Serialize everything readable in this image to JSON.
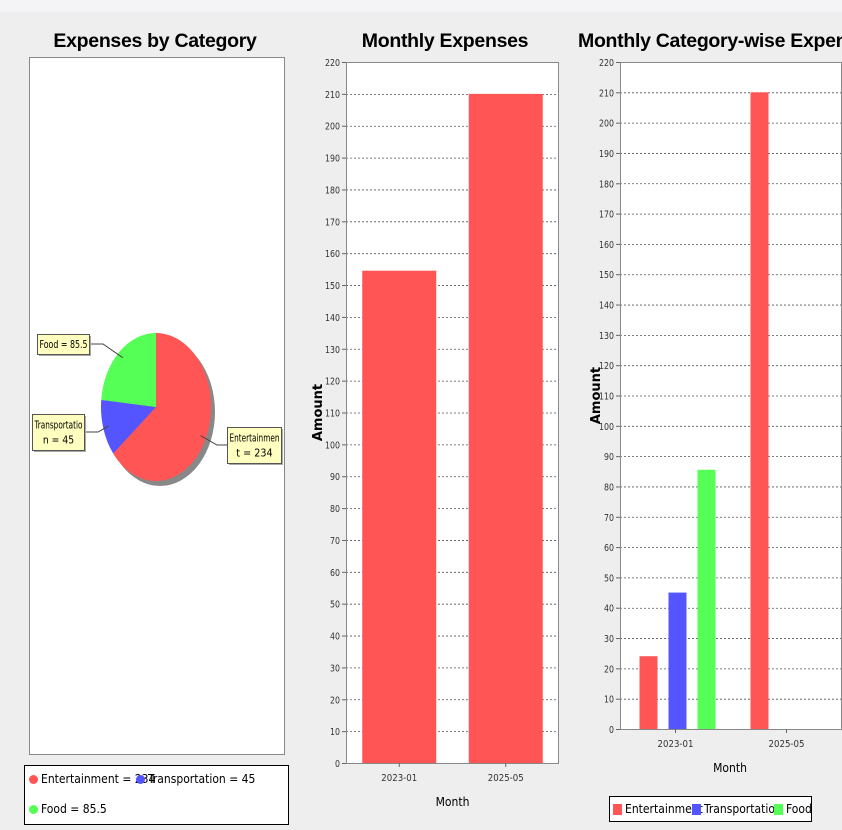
{
  "chart_data": [
    {
      "type": "pie",
      "title": "Expenses by Category",
      "slices": [
        {
          "label": "Entertainment",
          "value": 234,
          "color": "#ff5555",
          "callout": [
            "Entertainmen",
            "t = 234"
          ]
        },
        {
          "label": "Transportation",
          "value": 45,
          "color": "#5555ff",
          "callout": [
            "Transportatio",
            "n = 45"
          ]
        },
        {
          "label": "Food",
          "value": 85.5,
          "color": "#55ff55",
          "callout": [
            "Food = 85.5"
          ]
        }
      ],
      "legend": [
        "Entertainment = 234",
        "Transportation = 45",
        "Food = 85.5"
      ],
      "legend_position": "bottom"
    },
    {
      "type": "bar",
      "title": "Monthly Expenses",
      "categories": [
        "2023-01",
        "2025-05"
      ],
      "values": [
        154.5,
        210
      ],
      "color": "#ff5555",
      "xlabel": "Month",
      "ylabel": "Amount",
      "ylim": [
        0,
        220
      ],
      "ytick_step": 10,
      "grid": true
    },
    {
      "type": "bar",
      "title": "Monthly Category-wise Expenses",
      "categories": [
        "2023-01",
        "2025-05"
      ],
      "series": [
        {
          "name": "Entertainment",
          "values": [
            24,
            210
          ],
          "color": "#ff5555"
        },
        {
          "name": "Transportation",
          "values": [
            45,
            0
          ],
          "color": "#5555ff"
        },
        {
          "name": "Food",
          "values": [
            85.5,
            0
          ],
          "color": "#55ff55"
        }
      ],
      "xlabel": "Month",
      "ylabel": "Amount",
      "ylim": [
        0,
        220
      ],
      "ytick_step": 10,
      "grid": true,
      "legend_position": "bottom"
    }
  ]
}
